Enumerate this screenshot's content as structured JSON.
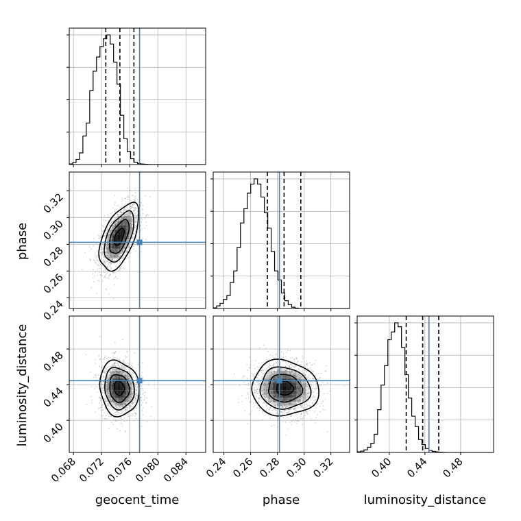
{
  "chart_data": {
    "type": "corner",
    "parameters": [
      "geocent_time",
      "phase",
      "luminosity_distance"
    ],
    "injection": {
      "geocent_time": 0.0774,
      "phase": 0.2815,
      "luminosity_distance": 0.4445
    },
    "ranges": {
      "geocent_time": [
        0.0674,
        0.0868
      ],
      "phase": [
        0.232,
        0.334
      ],
      "luminosity_distance": [
        0.364,
        0.517
      ]
    },
    "ticks": {
      "geocent_time": [
        "0.068",
        "0.072",
        "0.076",
        "0.080",
        "0.084"
      ],
      "phase": [
        "0.24",
        "0.26",
        "0.28",
        "0.30",
        "0.32"
      ],
      "luminosity_distance": [
        "0.40",
        "0.44",
        "0.48"
      ]
    },
    "quantiles": {
      "geocent_time": [
        0.0726,
        0.0746,
        0.0766
      ],
      "phase": [
        0.2725,
        0.285,
        0.2975
      ],
      "luminosity_distance": [
        0.419,
        0.4375,
        0.4555
      ]
    },
    "posterior_mean": {
      "geocent_time": 0.0745,
      "phase": 0.2855,
      "luminosity_distance": 0.436
    },
    "histograms": {
      "geocent_time": {
        "edges_start": 0.0674,
        "bin_width": 0.000485,
        "counts": [
          0.005,
          0.015,
          0.04,
          0.09,
          0.22,
          0.32,
          0.57,
          0.72,
          0.83,
          0.91,
          0.97,
          1.0,
          0.93,
          0.79,
          0.62,
          0.38,
          0.2,
          0.1,
          0.045,
          0.018,
          0.008,
          0.004,
          0.002,
          0.001,
          0,
          0,
          0,
          0,
          0,
          0,
          0,
          0,
          0,
          0,
          0,
          0,
          0,
          0,
          0,
          0
        ]
      },
      "phase": {
        "edges_start": 0.232,
        "bin_width": 0.00255,
        "counts": [
          0.005,
          0.02,
          0.04,
          0.07,
          0.1,
          0.2,
          0.29,
          0.47,
          0.66,
          0.77,
          0.89,
          0.96,
          1.0,
          0.96,
          0.86,
          0.74,
          0.62,
          0.44,
          0.29,
          0.22,
          0.12,
          0.06,
          0.03,
          0.01,
          0.003,
          0,
          0,
          0,
          0,
          0,
          0,
          0,
          0,
          0,
          0,
          0,
          0,
          0,
          0,
          0
        ]
      },
      "luminosity_distance": {
        "edges_start": 0.364,
        "bin_width": 0.003825,
        "counts": [
          0.005,
          0.01,
          0.02,
          0.04,
          0.07,
          0.14,
          0.33,
          0.52,
          0.67,
          0.87,
          0.93,
          1.0,
          0.97,
          0.81,
          0.6,
          0.42,
          0.28,
          0.2,
          0.1,
          0.06,
          0.03,
          0.015,
          0.008,
          0.004,
          0.002,
          0.001,
          0,
          0,
          0,
          0,
          0,
          0,
          0,
          0,
          0,
          0,
          0,
          0,
          0,
          0
        ]
      }
    },
    "scatter_panels": [
      {
        "x": "geocent_time",
        "y": "phase",
        "sx": 0.0014,
        "sy": 0.0125,
        "rho": 0.55
      },
      {
        "x": "geocent_time",
        "y": "luminosity_distance",
        "sx": 0.0014,
        "sy": 0.0155,
        "rho": -0.1
      },
      {
        "x": "phase",
        "y": "luminosity_distance",
        "sx": 0.0125,
        "sy": 0.0155,
        "rho": -0.05
      }
    ],
    "contour_levels_sigma": [
      0.5,
      1.0,
      1.5,
      2.0
    ],
    "grid": true,
    "colors": {
      "truth": "#4682b4",
      "contour": "#000000",
      "histogram": "#000000",
      "grid": "#b0b0b0",
      "scatter": "#9e9e9e",
      "density": "#000000"
    }
  }
}
